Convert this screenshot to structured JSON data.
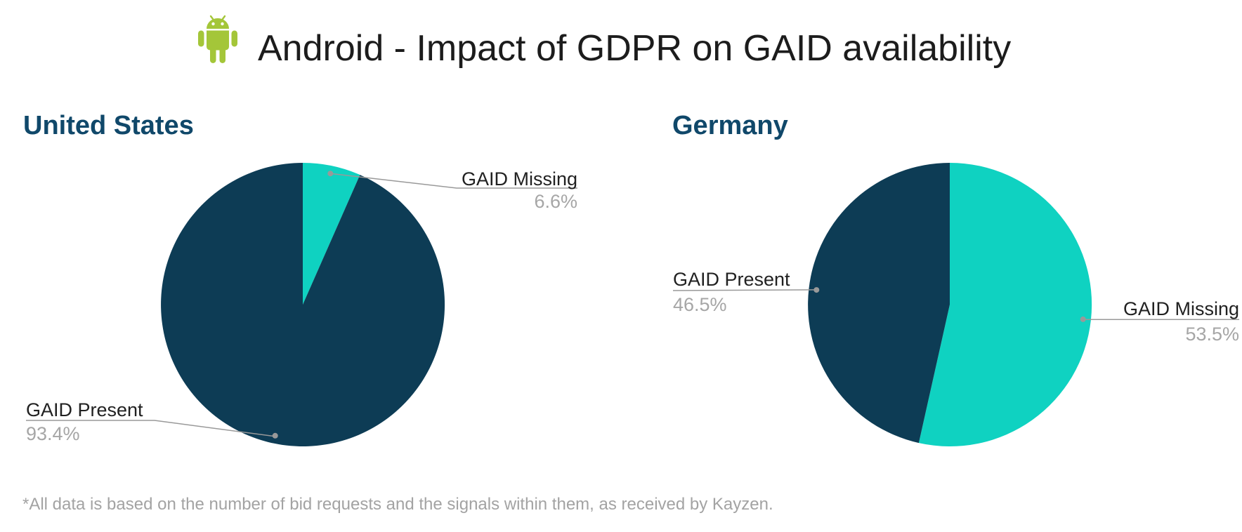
{
  "header": {
    "title": "Android - Impact of GDPR on GAID availability",
    "icon": "android-robot-icon"
  },
  "colors": {
    "android_green": "#a4c639",
    "present_slice": "#0d3c55",
    "missing_slice": "#0fd2c1",
    "chart_title": "#10486a",
    "label_text": "#212121",
    "value_text": "#a6a6a6",
    "leader_line": "#999999",
    "footnote_text": "#a3a3a3",
    "title_text": "#1c1c1c"
  },
  "chart_data": [
    {
      "type": "pie",
      "title": "United States",
      "start_angle_deg": 0,
      "direction": "clockwise",
      "legend_position": "outside-callouts",
      "slices": [
        {
          "label": "GAID Missing",
          "value_pct": 6.6,
          "display_value": "6.6%",
          "color": "#0fd2c1"
        },
        {
          "label": "GAID Present",
          "value_pct": 93.4,
          "display_value": "93.4%",
          "color": "#0d3c55"
        }
      ]
    },
    {
      "type": "pie",
      "title": "Germany",
      "start_angle_deg": 0,
      "direction": "clockwise",
      "legend_position": "outside-callouts",
      "slices": [
        {
          "label": "GAID Missing",
          "value_pct": 53.5,
          "display_value": "53.5%",
          "color": "#0fd2c1"
        },
        {
          "label": "GAID Present",
          "value_pct": 46.5,
          "display_value": "46.5%",
          "color": "#0d3c55"
        }
      ]
    }
  ],
  "footer": {
    "note": "*All data is based on the number of bid requests and the signals within them, as received by Kayzen."
  }
}
